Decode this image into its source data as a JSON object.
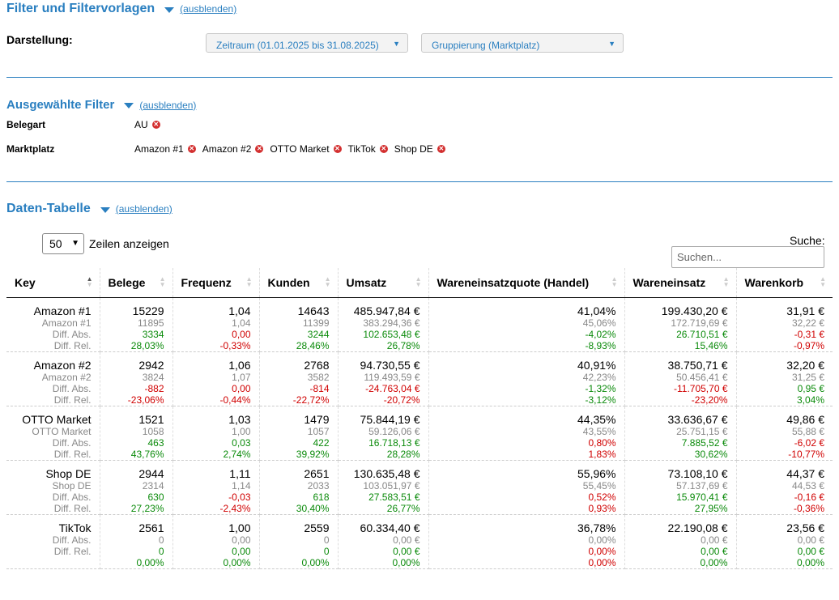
{
  "filter_section": {
    "title": "Filter und Filtervorlagen",
    "hide_link": "(ausblenden)",
    "display_label": "Darstellung:",
    "period_select": "Zeitraum (01.01.2025 bis 31.08.2025)",
    "grouping_select": "Gruppierung (Marktplatz)"
  },
  "selected_filters": {
    "title": "Ausgewählte Filter",
    "hide_link": "(ausblenden)",
    "rows": [
      {
        "label": "Belegart",
        "chips": [
          "AU"
        ]
      },
      {
        "label": "Marktplatz",
        "chips": [
          "Amazon #1",
          "Amazon #2",
          "OTTO Market",
          "TikTok",
          "Shop DE"
        ]
      }
    ]
  },
  "data_table": {
    "title": "Daten-Tabelle",
    "hide_link": "(ausblenden)",
    "page_length": "50",
    "page_length_label": "Zeilen anzeigen",
    "search_label": "Suche:",
    "search_placeholder": "Suchen...",
    "columns": [
      "Key",
      "Belege",
      "Frequenz",
      "Kunden",
      "Umsatz",
      "Wareneinsatzquote (Handel)",
      "Wareneinsatz",
      "Warenkorb"
    ],
    "rows": [
      {
        "key": [
          "Amazon #1",
          "Amazon #1",
          "Diff. Abs.",
          "Diff. Rel."
        ],
        "cells": [
          [
            "15229",
            "11895",
            "3334",
            "28,03%"
          ],
          [
            "1,04",
            "1,04",
            "0,00",
            "-0,33%"
          ],
          [
            "14643",
            "11399",
            "3244",
            "28,46%"
          ],
          [
            "485.947,84 €",
            "383.294,36 €",
            "102.653,48 €",
            "26,78%"
          ],
          [
            "41,04%",
            "45,06%",
            "-4,02%",
            "-8,93%"
          ],
          [
            "199.430,20 €",
            "172.719,69 €",
            "26.710,51 €",
            "15,46%"
          ],
          [
            "31,91 €",
            "32,22 €",
            "-0,31 €",
            "-0,97%"
          ]
        ],
        "colors": [
          [
            "g",
            "g"
          ],
          [
            "red",
            "red"
          ],
          [
            "g",
            "g"
          ],
          [
            "g",
            "g"
          ],
          [
            "g",
            "g"
          ],
          [
            "g",
            "g"
          ],
          [
            "red",
            "red"
          ]
        ]
      },
      {
        "key": [
          "Amazon #2",
          "Amazon #2",
          "Diff. Abs.",
          "Diff. Rel."
        ],
        "cells": [
          [
            "2942",
            "3824",
            "-882",
            "-23,06%"
          ],
          [
            "1,06",
            "1,07",
            "0,00",
            "-0,44%"
          ],
          [
            "2768",
            "3582",
            "-814",
            "-22,72%"
          ],
          [
            "94.730,55 €",
            "119.493,59 €",
            "-24.763,04 €",
            "-20,72%"
          ],
          [
            "40,91%",
            "42,23%",
            "-1,32%",
            "-3,12%"
          ],
          [
            "38.750,71 €",
            "50.456,41 €",
            "-11.705,70 €",
            "-23,20%"
          ],
          [
            "32,20 €",
            "31,25 €",
            "0,95 €",
            "3,04%"
          ]
        ],
        "colors": [
          [
            "red",
            "red"
          ],
          [
            "red",
            "red"
          ],
          [
            "red",
            "red"
          ],
          [
            "red",
            "red"
          ],
          [
            "g",
            "g"
          ],
          [
            "red",
            "red"
          ],
          [
            "g",
            "g"
          ]
        ]
      },
      {
        "key": [
          "OTTO Market",
          "OTTO Market",
          "Diff. Abs.",
          "Diff. Rel."
        ],
        "cells": [
          [
            "1521",
            "1058",
            "463",
            "43,76%"
          ],
          [
            "1,03",
            "1,00",
            "0,03",
            "2,74%"
          ],
          [
            "1479",
            "1057",
            "422",
            "39,92%"
          ],
          [
            "75.844,19 €",
            "59.126,06 €",
            "16.718,13 €",
            "28,28%"
          ],
          [
            "44,35%",
            "43,55%",
            "0,80%",
            "1,83%"
          ],
          [
            "33.636,67 €",
            "25.751,15 €",
            "7.885,52 €",
            "30,62%"
          ],
          [
            "49,86 €",
            "55,88 €",
            "-6,02 €",
            "-10,77%"
          ]
        ],
        "colors": [
          [
            "g",
            "g"
          ],
          [
            "g",
            "g"
          ],
          [
            "g",
            "g"
          ],
          [
            "g",
            "g"
          ],
          [
            "red",
            "red"
          ],
          [
            "g",
            "g"
          ],
          [
            "red",
            "red"
          ]
        ]
      },
      {
        "key": [
          "Shop DE",
          "Shop DE",
          "Diff. Abs.",
          "Diff. Rel."
        ],
        "cells": [
          [
            "2944",
            "2314",
            "630",
            "27,23%"
          ],
          [
            "1,11",
            "1,14",
            "-0,03",
            "-2,43%"
          ],
          [
            "2651",
            "2033",
            "618",
            "30,40%"
          ],
          [
            "130.635,48 €",
            "103.051,97 €",
            "27.583,51 €",
            "26,77%"
          ],
          [
            "55,96%",
            "55,45%",
            "0,52%",
            "0,93%"
          ],
          [
            "73.108,10 €",
            "57.137,69 €",
            "15.970,41 €",
            "27,95%"
          ],
          [
            "44,37 €",
            "44,53 €",
            "-0,16 €",
            "-0,36%"
          ]
        ],
        "colors": [
          [
            "g",
            "g"
          ],
          [
            "red",
            "red"
          ],
          [
            "g",
            "g"
          ],
          [
            "g",
            "g"
          ],
          [
            "red",
            "red"
          ],
          [
            "g",
            "g"
          ],
          [
            "red",
            "red"
          ]
        ]
      },
      {
        "key": [
          "TikTok",
          "Diff. Abs.",
          "Diff. Rel."
        ],
        "cells": [
          [
            "2561",
            "0",
            "0",
            "0,00%"
          ],
          [
            "1,00",
            "0,00",
            "0,00",
            "0,00%"
          ],
          [
            "2559",
            "0",
            "0",
            "0,00%"
          ],
          [
            "60.334,40 €",
            "0,00 €",
            "0,00 €",
            "0,00%"
          ],
          [
            "36,78%",
            "0,00%",
            "0,00%",
            "0,00%"
          ],
          [
            "22.190,08 €",
            "0,00 €",
            "0,00 €",
            "0,00%"
          ],
          [
            "23,56 €",
            "0,00 €",
            "0,00 €",
            "0,00%"
          ]
        ],
        "colors": [
          [
            "g",
            "g"
          ],
          [
            "g",
            "g"
          ],
          [
            "g",
            "g"
          ],
          [
            "g",
            "g"
          ],
          [
            "red",
            "red"
          ],
          [
            "g",
            "g"
          ],
          [
            "g",
            "g"
          ]
        ]
      }
    ]
  }
}
